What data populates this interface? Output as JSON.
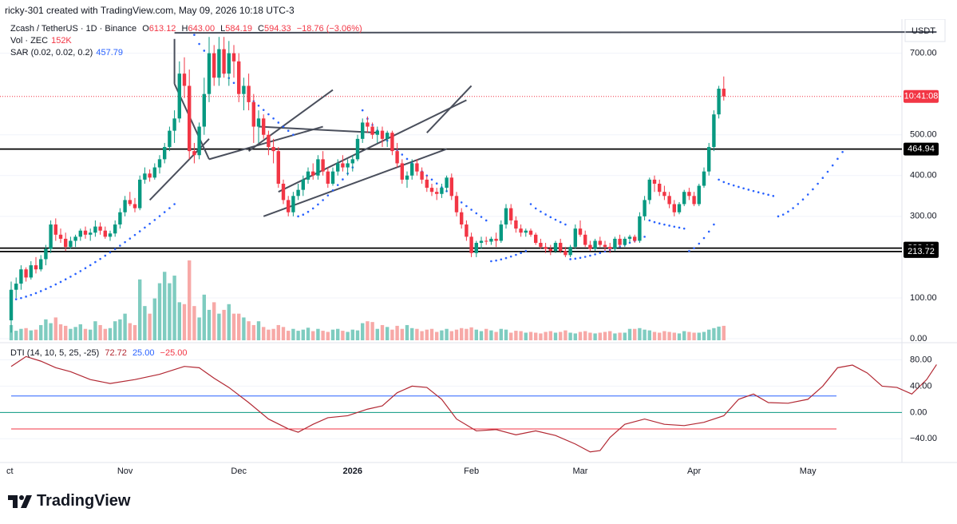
{
  "header": {
    "caption": "ricky-301 created with TradingView.com, May 09, 2026 10:18 UTC-3"
  },
  "legend": {
    "symbol": "Zcash / TetherUS · 1D · Binance",
    "o_label": "O",
    "o": "613.12",
    "h_label": "H",
    "h": "643.00",
    "l_label": "L",
    "l": "584.19",
    "c_label": "C",
    "c": "594.33",
    "change": "−18.76 (−3.06%)",
    "vol_label": "Vol · ZEC",
    "vol": "152K",
    "sar_label": "SAR (0.02, 0.02, 0.2)",
    "sar": "457.79",
    "dti_label": "DTI (14, 10, 5, 25, -25)",
    "dti": "72.72",
    "dti_upper": "25.00",
    "dti_lower": "−25.00"
  },
  "axis": {
    "currency": "USDT",
    "price_ticks": [
      "700.00",
      "500.00",
      "400.00",
      "300.00",
      "100.00",
      "0.00"
    ],
    "dti_ticks": [
      "80.00",
      "40.00",
      "0.00",
      "−40.00"
    ],
    "time_labels": [
      "ct",
      "Nov",
      "Dec",
      "2026",
      "Feb",
      "Mar",
      "Apr",
      "May"
    ]
  },
  "badges": {
    "countdown": "10:41:08",
    "level_1": "464.94",
    "level_2": "222.10",
    "level_3": "213.72"
  },
  "brand": {
    "name": "TradingView"
  },
  "colors": {
    "up": "#089981",
    "down": "#f23645",
    "sar": "#2962ff",
    "dti": "#b22833",
    "hline": "#000000",
    "trend": "#4a4f5c"
  },
  "chart_data": {
    "type": "candlestick",
    "price_range": [
      0,
      760
    ],
    "dti_range": [
      -70,
      100
    ],
    "candles": [
      [
        45,
        140,
        15,
        120
      ],
      [
        120,
        150,
        100,
        135
      ],
      [
        135,
        180,
        120,
        170
      ],
      [
        170,
        175,
        140,
        150
      ],
      [
        150,
        190,
        145,
        180
      ],
      [
        180,
        200,
        160,
        170
      ],
      [
        170,
        205,
        165,
        195
      ],
      [
        195,
        230,
        180,
        220
      ],
      [
        220,
        290,
        210,
        280
      ],
      [
        280,
        295,
        240,
        255
      ],
      [
        255,
        270,
        235,
        245
      ],
      [
        245,
        260,
        215,
        225
      ],
      [
        225,
        250,
        220,
        240
      ],
      [
        240,
        255,
        225,
        250
      ],
      [
        250,
        270,
        240,
        265
      ],
      [
        265,
        275,
        245,
        255
      ],
      [
        255,
        270,
        240,
        260
      ],
      [
        260,
        290,
        250,
        275
      ],
      [
        275,
        285,
        255,
        265
      ],
      [
        265,
        275,
        245,
        250
      ],
      [
        250,
        265,
        240,
        258
      ],
      [
        258,
        290,
        250,
        280
      ],
      [
        280,
        320,
        270,
        310
      ],
      [
        310,
        350,
        300,
        340
      ],
      [
        340,
        360,
        325,
        330
      ],
      [
        330,
        345,
        310,
        320
      ],
      [
        320,
        400,
        315,
        390
      ],
      [
        390,
        420,
        380,
        405
      ],
      [
        405,
        415,
        385,
        395
      ],
      [
        395,
        430,
        390,
        420
      ],
      [
        420,
        450,
        405,
        440
      ],
      [
        440,
        480,
        430,
        470
      ],
      [
        470,
        520,
        460,
        510
      ],
      [
        510,
        560,
        480,
        540
      ],
      [
        540,
        680,
        530,
        650
      ],
      [
        650,
        690,
        590,
        620
      ],
      [
        620,
        660,
        440,
        460
      ],
      [
        460,
        480,
        430,
        450
      ],
      [
        450,
        530,
        440,
        520
      ],
      [
        520,
        640,
        500,
        600
      ],
      [
        600,
        740,
        580,
        700
      ],
      [
        700,
        720,
        620,
        640
      ],
      [
        640,
        740,
        620,
        710
      ],
      [
        710,
        740,
        640,
        650
      ],
      [
        650,
        730,
        620,
        700
      ],
      [
        700,
        720,
        640,
        680
      ],
      [
        680,
        700,
        580,
        600
      ],
      [
        600,
        640,
        560,
        620
      ],
      [
        620,
        650,
        560,
        580
      ],
      [
        580,
        600,
        480,
        520
      ],
      [
        520,
        560,
        480,
        540
      ],
      [
        540,
        550,
        490,
        500
      ],
      [
        500,
        510,
        450,
        470
      ],
      [
        470,
        490,
        430,
        460
      ],
      [
        460,
        470,
        370,
        380
      ],
      [
        380,
        390,
        330,
        340
      ],
      [
        340,
        350,
        300,
        310
      ],
      [
        310,
        360,
        300,
        350
      ],
      [
        350,
        380,
        340,
        365
      ],
      [
        365,
        400,
        350,
        390
      ],
      [
        390,
        420,
        380,
        410
      ],
      [
        410,
        430,
        390,
        400
      ],
      [
        400,
        450,
        390,
        440
      ],
      [
        440,
        460,
        400,
        410
      ],
      [
        410,
        420,
        370,
        380
      ],
      [
        380,
        420,
        375,
        410
      ],
      [
        410,
        440,
        400,
        430
      ],
      [
        430,
        450,
        410,
        420
      ],
      [
        420,
        440,
        400,
        430
      ],
      [
        430,
        450,
        410,
        440
      ],
      [
        440,
        500,
        435,
        490
      ],
      [
        490,
        540,
        480,
        530
      ],
      [
        530,
        545,
        505,
        520
      ],
      [
        520,
        530,
        490,
        500
      ],
      [
        500,
        520,
        480,
        510
      ],
      [
        510,
        520,
        470,
        490
      ],
      [
        490,
        510,
        470,
        505
      ],
      [
        505,
        510,
        450,
        460
      ],
      [
        460,
        480,
        420,
        430
      ],
      [
        430,
        440,
        380,
        390
      ],
      [
        390,
        410,
        370,
        400
      ],
      [
        400,
        440,
        390,
        430
      ],
      [
        430,
        440,
        400,
        410
      ],
      [
        410,
        420,
        380,
        390
      ],
      [
        390,
        400,
        360,
        370
      ],
      [
        370,
        380,
        350,
        360
      ],
      [
        360,
        370,
        340,
        355
      ],
      [
        355,
        380,
        345,
        370
      ],
      [
        370,
        400,
        360,
        395
      ],
      [
        395,
        405,
        340,
        350
      ],
      [
        350,
        360,
        300,
        310
      ],
      [
        310,
        320,
        270,
        280
      ],
      [
        280,
        290,
        240,
        250
      ],
      [
        250,
        260,
        200,
        210
      ],
      [
        210,
        240,
        200,
        235
      ],
      [
        235,
        250,
        220,
        240
      ],
      [
        240,
        250,
        230,
        238
      ],
      [
        238,
        250,
        230,
        245
      ],
      [
        245,
        260,
        225,
        240
      ],
      [
        240,
        290,
        235,
        280
      ],
      [
        280,
        330,
        270,
        320
      ],
      [
        320,
        330,
        280,
        290
      ],
      [
        290,
        300,
        260,
        270
      ],
      [
        270,
        280,
        250,
        260
      ],
      [
        260,
        270,
        250,
        265
      ],
      [
        265,
        270,
        250,
        255
      ],
      [
        255,
        260,
        230,
        235
      ],
      [
        235,
        245,
        220,
        225
      ],
      [
        225,
        235,
        210,
        220
      ],
      [
        220,
        230,
        205,
        215
      ],
      [
        215,
        240,
        210,
        235
      ],
      [
        235,
        245,
        210,
        215
      ],
      [
        215,
        225,
        200,
        205
      ],
      [
        205,
        230,
        200,
        225
      ],
      [
        225,
        280,
        220,
        270
      ],
      [
        270,
        290,
        250,
        255
      ],
      [
        255,
        265,
        225,
        230
      ],
      [
        230,
        240,
        215,
        220
      ],
      [
        220,
        245,
        215,
        240
      ],
      [
        240,
        250,
        225,
        230
      ],
      [
        230,
        240,
        215,
        225
      ],
      [
        225,
        235,
        210,
        220
      ],
      [
        220,
        250,
        215,
        245
      ],
      [
        245,
        255,
        225,
        230
      ],
      [
        230,
        250,
        225,
        245
      ],
      [
        245,
        255,
        235,
        250
      ],
      [
        250,
        255,
        235,
        240
      ],
      [
        240,
        310,
        235,
        300
      ],
      [
        300,
        350,
        290,
        340
      ],
      [
        340,
        395,
        330,
        390
      ],
      [
        390,
        400,
        360,
        380
      ],
      [
        380,
        390,
        350,
        360
      ],
      [
        360,
        375,
        340,
        350
      ],
      [
        350,
        360,
        320,
        330
      ],
      [
        330,
        340,
        300,
        310
      ],
      [
        310,
        335,
        305,
        330
      ],
      [
        330,
        365,
        325,
        360
      ],
      [
        360,
        370,
        340,
        350
      ],
      [
        350,
        360,
        325,
        330
      ],
      [
        330,
        380,
        325,
        375
      ],
      [
        375,
        420,
        370,
        410
      ],
      [
        410,
        480,
        400,
        470
      ],
      [
        470,
        560,
        460,
        550
      ],
      [
        550,
        620,
        540,
        613
      ],
      [
        613,
        643,
        584,
        594
      ]
    ],
    "volume_max": 210,
    "volumes": [
      40,
      25,
      30,
      32,
      26,
      28,
      40,
      55,
      45,
      60,
      42,
      38,
      30,
      35,
      42,
      30,
      28,
      50,
      40,
      30,
      32,
      50,
      55,
      70,
      45,
      40,
      160,
      90,
      70,
      110,
      150,
      180,
      150,
      170,
      100,
      95,
      210,
      90,
      60,
      120,
      80,
      100,
      70,
      80,
      95,
      70,
      70,
      60,
      50,
      40,
      50,
      35,
      28,
      30,
      40,
      35,
      25,
      30,
      25,
      28,
      33,
      24,
      30,
      25,
      22,
      28,
      30,
      25,
      22,
      28,
      26,
      45,
      50,
      48,
      30,
      40,
      35,
      28,
      38,
      30,
      40,
      32,
      30,
      24,
      28,
      30,
      22,
      26,
      30,
      24,
      28,
      32,
      30,
      34,
      28,
      24,
      30,
      26,
      22,
      30,
      28,
      20,
      25,
      24,
      20,
      22,
      20,
      18,
      22,
      24,
      20,
      22,
      26,
      20,
      18,
      22,
      24,
      20,
      18,
      20,
      22,
      24,
      18,
      20,
      20,
      30,
      30,
      32,
      28,
      26,
      22,
      20,
      24,
      22,
      20,
      18,
      24,
      22,
      20,
      20,
      22,
      28,
      32,
      36,
      38,
      20
    ],
    "sar_segments": [
      {
        "from": 0,
        "to": 33,
        "values_start": 95,
        "values_end": 330,
        "side": "below"
      },
      {
        "from": 37,
        "to": 57,
        "values_start": 745,
        "values_end": 500,
        "side": "above"
      },
      {
        "from": 58,
        "to": 69,
        "values_start": 300,
        "values_end": 420,
        "side": "below"
      },
      {
        "from": 71,
        "to": 96,
        "values_start": 560,
        "values_end": 290,
        "side": "above"
      },
      {
        "from": 97,
        "to": 104,
        "values_start": 190,
        "values_end": 215,
        "side": "below"
      },
      {
        "from": 105,
        "to": 112,
        "values_start": 330,
        "values_end": 280,
        "side": "above"
      },
      {
        "from": 113,
        "to": 128,
        "values_start": 195,
        "values_end": 250,
        "side": "below"
      },
      {
        "from": 129,
        "to": 136,
        "values_start": 290,
        "values_end": 270,
        "side": "above"
      },
      {
        "from": 137,
        "to": 142,
        "values_start": 215,
        "values_end": 280,
        "side": "below"
      },
      {
        "from": 143,
        "to": 154,
        "values_start": 390,
        "values_end": 350,
        "side": "above"
      },
      {
        "from": 155,
        "to": 168,
        "values_start": 300,
        "values_end": 457.79,
        "side": "below"
      }
    ],
    "dti_points": [
      [
        0,
        70
      ],
      [
        3,
        85
      ],
      [
        6,
        78
      ],
      [
        9,
        68
      ],
      [
        12,
        62
      ],
      [
        16,
        50
      ],
      [
        20,
        44
      ],
      [
        25,
        50
      ],
      [
        30,
        58
      ],
      [
        35,
        70
      ],
      [
        38,
        68
      ],
      [
        41,
        52
      ],
      [
        44,
        38
      ],
      [
        48,
        15
      ],
      [
        52,
        -10
      ],
      [
        56,
        -25
      ],
      [
        58,
        -30
      ],
      [
        61,
        -18
      ],
      [
        64,
        -8
      ],
      [
        68,
        -5
      ],
      [
        72,
        5
      ],
      [
        75,
        10
      ],
      [
        78,
        30
      ],
      [
        81,
        40
      ],
      [
        84,
        38
      ],
      [
        87,
        20
      ],
      [
        90,
        -10
      ],
      [
        94,
        -28
      ],
      [
        98,
        -26
      ],
      [
        102,
        -34
      ],
      [
        106,
        -28
      ],
      [
        110,
        -35
      ],
      [
        114,
        -48
      ],
      [
        117,
        -60
      ],
      [
        119,
        -58
      ],
      [
        121,
        -38
      ],
      [
        124,
        -18
      ],
      [
        128,
        -10
      ],
      [
        132,
        -18
      ],
      [
        136,
        -20
      ],
      [
        140,
        -15
      ],
      [
        144,
        -5
      ],
      [
        147,
        20
      ],
      [
        150,
        28
      ],
      [
        153,
        15
      ],
      [
        157,
        14
      ],
      [
        161,
        20
      ],
      [
        164,
        40
      ],
      [
        167,
        68
      ],
      [
        170,
        72
      ],
      [
        173,
        60
      ],
      [
        176,
        40
      ],
      [
        179,
        38
      ],
      [
        182,
        28
      ],
      [
        185,
        50
      ],
      [
        187,
        72.72
      ]
    ],
    "hlines": [
      464.94,
      222.1,
      213.72
    ],
    "trendlines": [
      [
        [
          33,
          750
        ],
        [
          187,
          752
        ]
      ],
      [
        [
          33,
          735
        ],
        [
          33,
          625
        ]
      ],
      [
        [
          33,
          625
        ],
        [
          40,
          440
        ]
      ],
      [
        [
          40,
          440
        ],
        [
          63,
          520
        ]
      ],
      [
        [
          28,
          340
        ],
        [
          40,
          490
        ]
      ],
      [
        [
          50,
          520
        ],
        [
          74,
          505
        ]
      ],
      [
        [
          51,
          300
        ],
        [
          88,
          465
        ]
      ],
      [
        [
          54,
          360
        ],
        [
          92,
          585
        ]
      ],
      [
        [
          48,
          460
        ],
        [
          65,
          610
        ]
      ],
      [
        [
          84,
          505
        ],
        [
          93,
          620
        ]
      ]
    ]
  }
}
